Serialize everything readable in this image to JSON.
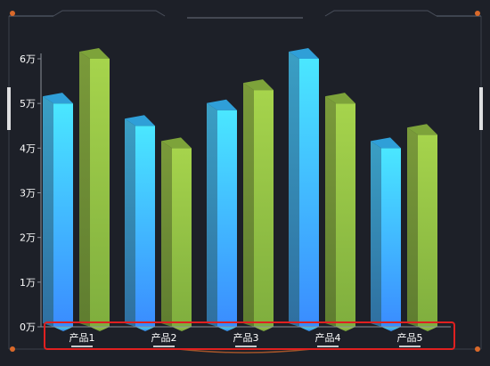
{
  "chart_data": {
    "type": "bar",
    "title": "",
    "xlabel": "",
    "ylabel": "",
    "categories": [
      "产品1",
      "产品2",
      "产品3",
      "产品4",
      "产品5"
    ],
    "series": [
      {
        "values": [
          50000,
          45000,
          48500,
          60000,
          40000
        ]
      },
      {
        "values": [
          60000,
          40000,
          53000,
          50000,
          43000
        ]
      }
    ],
    "y_ticks": [
      {
        "value": 0,
        "label": "0万"
      },
      {
        "value": 10000,
        "label": "1万"
      },
      {
        "value": 20000,
        "label": "2万"
      },
      {
        "value": 30000,
        "label": "3万"
      },
      {
        "value": 40000,
        "label": "4万"
      },
      {
        "value": 50000,
        "label": "5万"
      },
      {
        "value": 60000,
        "label": "6万"
      }
    ],
    "ylim": [
      0,
      60000
    ],
    "grid": false,
    "style": "3d-bar",
    "colors": {
      "series1_top": "#4ae7ff",
      "series1_bottom": "#3a8cff",
      "series1_side": "#2f7fae",
      "series2_top": "#a6d44c",
      "series2_bottom": "#6b9a3a",
      "series2_side": "#6e8c36",
      "axis": "#8a8f99",
      "label": "#ffffff",
      "highlight_box": "#e02020",
      "frame": "#3b404a",
      "corner_accent": "#d9692a"
    }
  }
}
